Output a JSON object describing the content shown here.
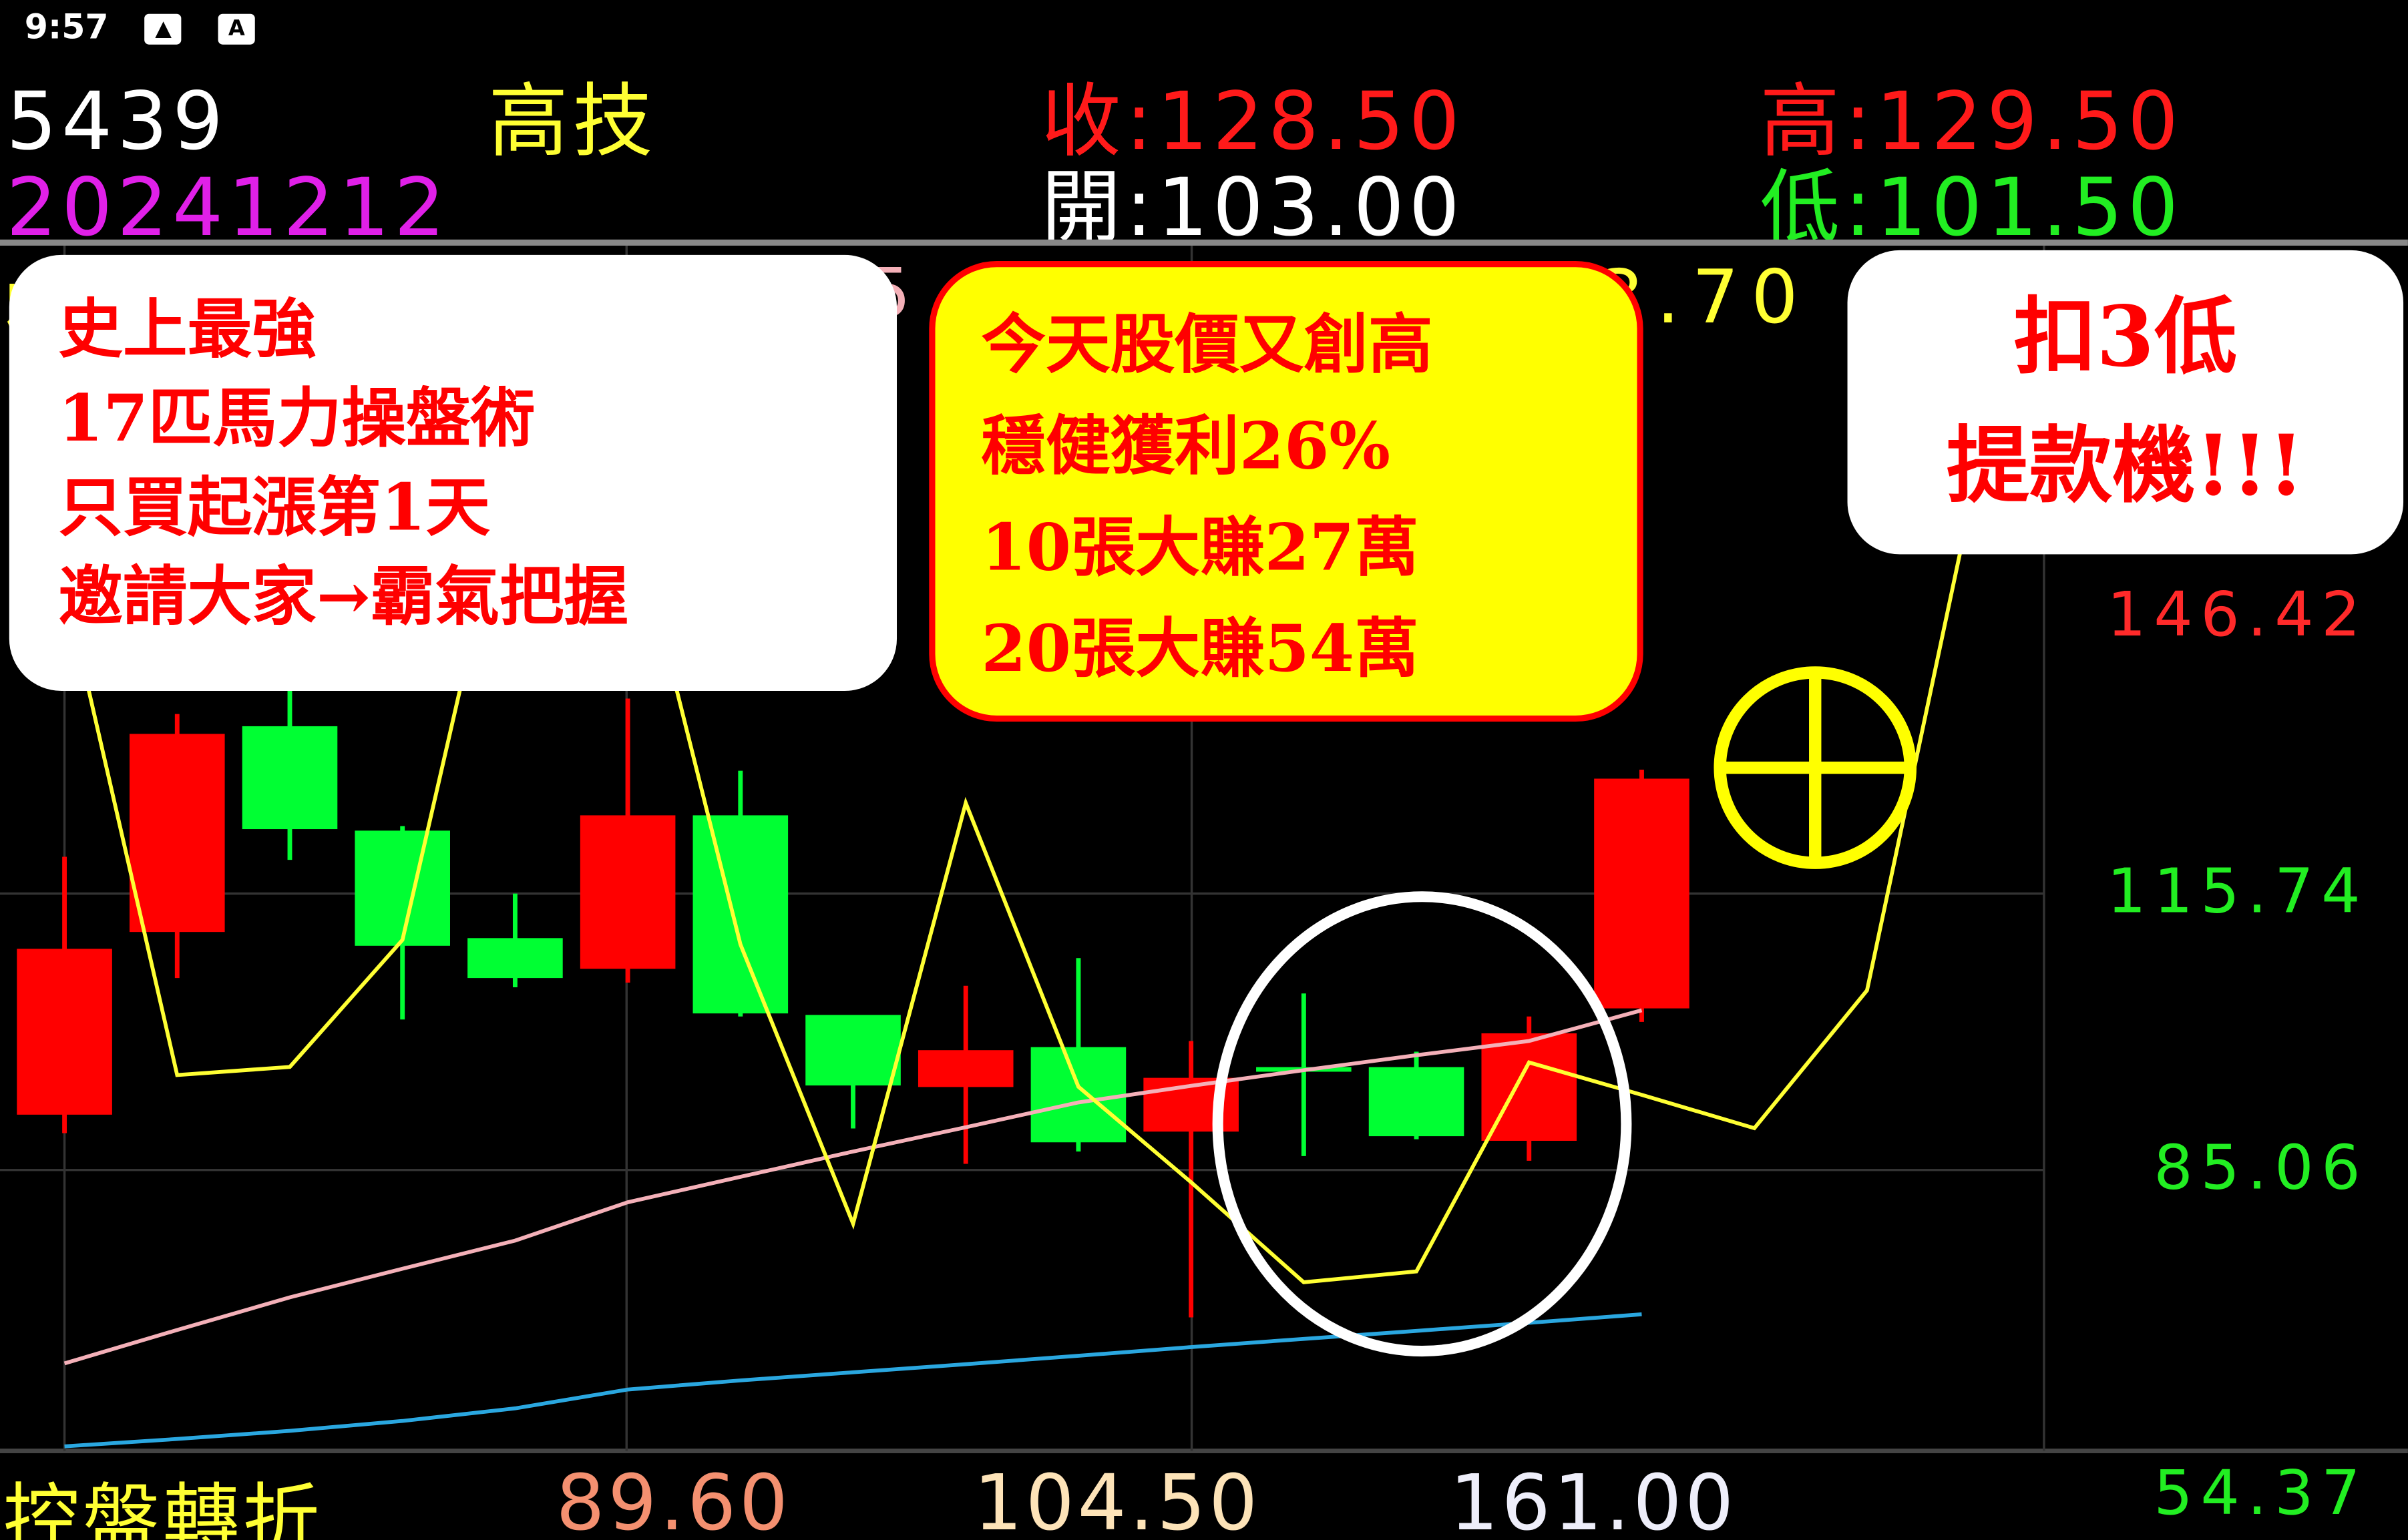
{
  "status_bar": {
    "time": "9:57",
    "icons": [
      "image-icon",
      "text-a-icon"
    ],
    "icon_glyphs": [
      "▲",
      "A"
    ]
  },
  "header": {
    "code": "5439",
    "name": "高技",
    "date": "20241212",
    "close": "收:128.50",
    "high": "高:129.50",
    "open": "開:103.00",
    "low": "低:101.50"
  },
  "partial_row": {
    "left": "收",
    "mid": "5",
    "right": "3.70"
  },
  "bubbles": {
    "left": [
      "史上最強",
      "17匹馬力操盤術",
      "只買起漲第1天",
      "邀請大家→霸氣把握"
    ],
    "center": [
      "今天股價又創高",
      "穩健獲利26%",
      "10張大賺27萬",
      "20張大賺54萬"
    ],
    "right": [
      "扣3低",
      "提款機!!!"
    ]
  },
  "footer": {
    "label": "控盤轉折",
    "v1": "89.60",
    "v2": "104.50",
    "v3": "161.00"
  },
  "colors": {
    "up": "#ff0000",
    "down": "#00ff33",
    "ma_short": "#ffff33",
    "ma_mid": "#f4b0b8",
    "ma_long": "#2aa7e0",
    "center_bubble": "#ffff00"
  },
  "chart_data": {
    "type": "candlestick",
    "y_ticks": [
      "146.42",
      "115.74",
      "85.06",
      "54.37"
    ],
    "ylim": [
      54.37,
      146.42
    ],
    "candles": [
      {
        "o": 91.2,
        "c": 109.61,
        "h": 119.83,
        "l": 89.15
      },
      {
        "o": 111.48,
        "c": 133.47,
        "h": 135.68,
        "l": 106.37
      },
      {
        "o": 134.32,
        "c": 122.9,
        "h": 139.09,
        "l": 119.49
      },
      {
        "o": 122.73,
        "c": 109.95,
        "h": 123.24,
        "l": 101.77
      },
      {
        "o": 110.8,
        "c": 106.37,
        "h": 115.74,
        "l": 105.34
      },
      {
        "o": 107.39,
        "c": 124.43,
        "h": 137.39,
        "l": 105.86
      },
      {
        "o": 124.43,
        "c": 102.44,
        "h": 129.38,
        "l": 102.1
      },
      {
        "o": 102.27,
        "c": 94.44,
        "h": 102.27,
        "l": 89.67
      },
      {
        "o": 94.27,
        "c": 98.36,
        "h": 105.51,
        "l": 85.74
      },
      {
        "o": 98.7,
        "c": 88.13,
        "h": 108.58,
        "l": 87.11
      },
      {
        "o": 89.32,
        "c": 95.29,
        "h": 99.38,
        "l": 68.7
      },
      {
        "o": 96.48,
        "c": 96.3,
        "h": 104.66,
        "l": 86.6
      },
      {
        "o": 96.48,
        "c": 88.81,
        "h": 98.19,
        "l": 88.47
      },
      {
        "o": 88.3,
        "c": 100.23,
        "h": 102.1,
        "l": 86.08
      },
      {
        "o": 103.0,
        "c": 128.5,
        "h": 129.5,
        "l": 101.5
      }
    ],
    "ma_short": [
      150,
      95.6,
      96.5,
      110.6,
      165,
      160,
      110.1,
      79.1,
      125.8,
      94.3,
      83.7,
      72.6,
      73.8,
      97.0,
      93.4,
      89.7,
      105.0,
      163.8
    ],
    "ma_mid": [
      63.59,
      67.3,
      70.92,
      74.1,
      77.22,
      81.48,
      84.3,
      87.11,
      89.8,
      92.56,
      94.4,
      96.14,
      97.8,
      99.38,
      102.79
    ],
    "ma_long": [
      54.38,
      55.2,
      56.1,
      57.2,
      58.6,
      60.69,
      61.7,
      62.6,
      63.5,
      64.44,
      65.4,
      66.31,
      67.2,
      68.1,
      69.04
    ]
  }
}
